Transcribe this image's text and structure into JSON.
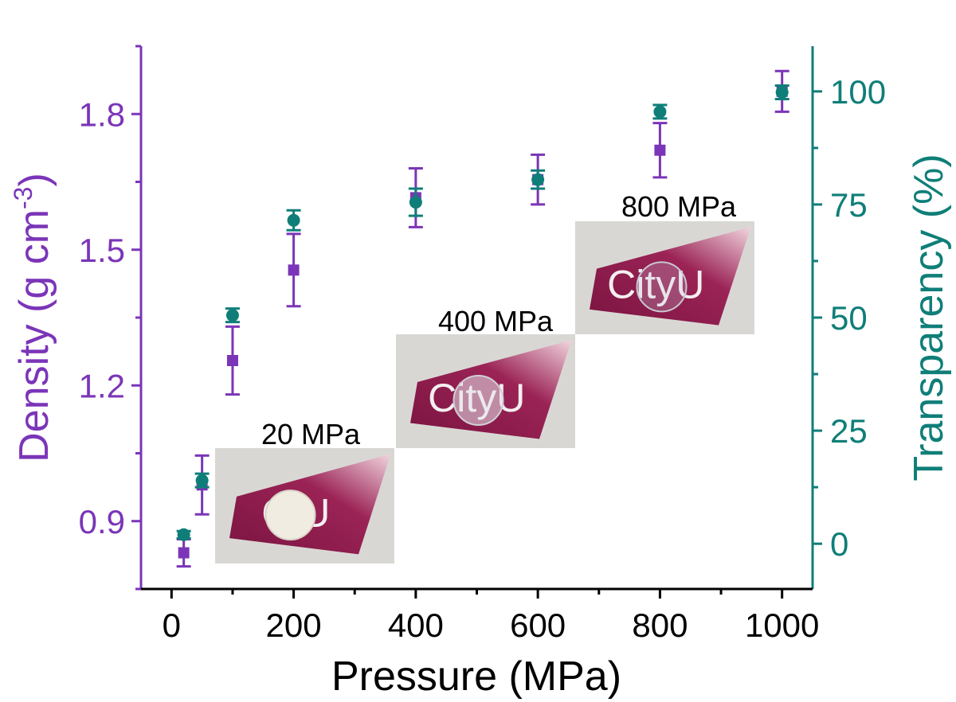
{
  "chart_data": {
    "type": "scatter",
    "x_axis": {
      "label": "Pressure (MPa)",
      "range": [
        -50,
        1050
      ],
      "ticks": [
        0,
        200,
        400,
        600,
        800,
        1000
      ],
      "color": "#000000"
    },
    "y_axis_left": {
      "label_main": "Density (g cm",
      "label_sup": "-3",
      "label_close": ")",
      "range": [
        0.75,
        1.95
      ],
      "ticks": [
        0.9,
        1.2,
        1.5,
        1.8
      ],
      "tick_labels": [
        "0.9",
        "1.2",
        "1.5",
        "1.8"
      ],
      "color": "#7B35B8"
    },
    "y_axis_right": {
      "label": "Transparency (%)",
      "range": [
        -10,
        110
      ],
      "ticks": [
        0,
        25,
        50,
        75,
        100
      ],
      "color": "#0F7E78"
    },
    "series": [
      {
        "axis": "left",
        "marker": "square",
        "color": "#7B35B8",
        "x": [
          20,
          50,
          100,
          200,
          400,
          600,
          800,
          1000
        ],
        "y": [
          0.83,
          0.98,
          1.255,
          1.455,
          1.615,
          1.655,
          1.72,
          1.85
        ],
        "err": [
          0.03,
          0.065,
          0.075,
          0.08,
          0.065,
          0.055,
          0.06,
          0.045
        ]
      },
      {
        "axis": "right",
        "marker": "circle",
        "color": "#0F7E78",
        "x": [
          20,
          50,
          100,
          200,
          400,
          600,
          800,
          1000
        ],
        "y": [
          2,
          14,
          50.5,
          71.5,
          75.5,
          80.5,
          95.5,
          99.8
        ],
        "err": [
          0.8,
          1.5,
          1.5,
          2.2,
          3,
          2,
          1.5,
          1.5
        ]
      }
    ],
    "annotations": [
      {
        "label": "20 MPa",
        "photo_text": "C  U"
      },
      {
        "label": "400 MPa",
        "photo_text": "CityU"
      },
      {
        "label": "800 MPa",
        "photo_text": "CityU"
      }
    ]
  }
}
